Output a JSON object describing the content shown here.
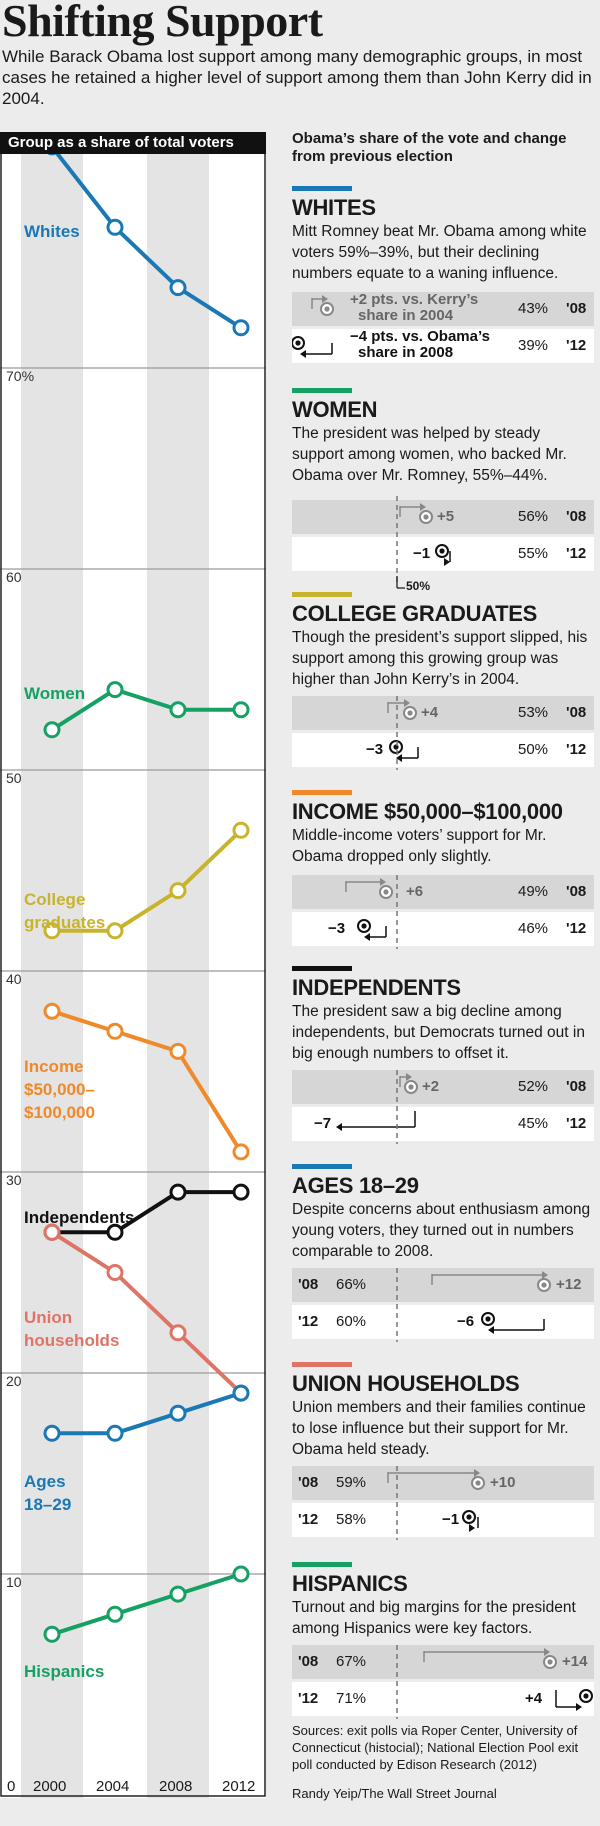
{
  "header": {
    "title": "Shifting Support",
    "subtitle": "While Barack Obama lost support among many demographic groups, in most cases he retained a higher level of support among them than John Kerry did in 2004."
  },
  "left_panel": {
    "header": "Group as a share of total voters",
    "line_labels": {
      "whites": "Whites",
      "women": "Women",
      "college_1": "College",
      "college_2": "graduates",
      "income_1": "Income",
      "income_2": "$50,000–",
      "income_3": "$100,000",
      "independents": "Independents",
      "union_1": "Union",
      "union_2": "households",
      "ages_1": "Ages",
      "ages_2": "18–29",
      "hispanics": "Hispanics"
    },
    "yticks": {
      "t70": "70%",
      "t60": "60",
      "t50": "50",
      "t40": "40",
      "t30": "30",
      "t20": "20",
      "t10": "10",
      "t0": "0"
    },
    "xticks": {
      "x2000": "2000",
      "x2004": "2004",
      "x2008": "2008",
      "x2012": "2012"
    }
  },
  "colors": {
    "whites": "#1a78b4",
    "women": "#15a163",
    "college": "#c8b42c",
    "income": "#f0892a",
    "independents": "#111111",
    "union": "#de7466",
    "ages": "#1a78b4",
    "hispanics": "#15a163",
    "gray_marker": "#888888"
  },
  "chart_data": [
    {
      "type": "line",
      "title": "Group as a share of total voters",
      "x": [
        2000,
        2004,
        2008,
        2012
      ],
      "ylim": [
        0,
        80
      ],
      "series": [
        {
          "name": "Whites",
          "values": [
            81,
            77,
            74,
            72
          ]
        },
        {
          "name": "Women",
          "values": [
            52,
            54,
            53,
            53
          ]
        },
        {
          "name": "College graduates",
          "values": [
            42,
            42,
            44,
            47
          ]
        },
        {
          "name": "Income $50,000–$100,000",
          "values": [
            38,
            37,
            36,
            31
          ]
        },
        {
          "name": "Independents",
          "values": [
            27,
            27,
            29,
            29
          ]
        },
        {
          "name": "Union households",
          "values": [
            27,
            25,
            22,
            19
          ]
        },
        {
          "name": "Ages 18–29",
          "values": [
            17,
            17,
            18,
            19
          ]
        },
        {
          "name": "Hispanics",
          "values": [
            7,
            8,
            9,
            10
          ]
        }
      ]
    },
    {
      "type": "bar",
      "title": "Obama’s share of the vote and change from previous election",
      "categories": [
        "Whites",
        "Women",
        "College graduates",
        "Income $50,000–$100,000",
        "Independents",
        "Ages 18–29",
        "Union households",
        "Hispanics"
      ],
      "series": [
        {
          "name": "'08",
          "values": [
            43,
            56,
            53,
            49,
            52,
            66,
            59,
            67
          ]
        },
        {
          "name": "'12",
          "values": [
            39,
            55,
            50,
            46,
            45,
            60,
            58,
            71
          ]
        },
        {
          "name": "'08 change",
          "values": [
            2,
            5,
            4,
            6,
            2,
            12,
            10,
            14
          ]
        },
        {
          "name": "'12 change",
          "values": [
            -4,
            -1,
            -3,
            -3,
            -7,
            -6,
            -1,
            4
          ]
        }
      ]
    }
  ],
  "right_header": "Obama’s share of the vote and change from previous election",
  "reference_label": "50%",
  "sections": {
    "whites": {
      "title": "WHITES",
      "desc": "Mitt Romney beat Mr. Obama among white voters 59%–39%, but their declining numbers equate to a waning influence.",
      "r08_change_1": "+2 pts. vs. Kerry’s",
      "r08_change_2": "share in 2004",
      "r08_pct": "43%",
      "r08_year": "'08",
      "r12_change_1": "−4 pts. vs. Obama’s",
      "r12_change_2": "share in 2008",
      "r12_pct": "39%",
      "r12_year": "'12"
    },
    "women": {
      "title": "WOMEN",
      "desc": "The president was helped by steady support among women, who backed Mr. Obama over Mr. Romney, 55%–44%.",
      "r08_change": "+5",
      "r08_pct": "56%",
      "r08_year": "'08",
      "r12_change": "−1",
      "r12_pct": "55%",
      "r12_year": "'12"
    },
    "college": {
      "title": "COLLEGE GRADUATES",
      "desc": "Though the president’s support slipped, his support among this growing group was higher than John Kerry’s in 2004.",
      "r08_change": "+4",
      "r08_pct": "53%",
      "r08_year": "'08",
      "r12_change": "−3",
      "r12_pct": "50%",
      "r12_year": "'12"
    },
    "income": {
      "title": "INCOME $50,000–$100,000",
      "desc": "Middle-income voters’ support for Mr. Obama dropped only slightly.",
      "r08_change": "+6",
      "r08_pct": "49%",
      "r08_year": "'08",
      "r12_change": "−3",
      "r12_pct": "46%",
      "r12_year": "'12"
    },
    "independents": {
      "title": "INDEPENDENTS",
      "desc": "The president saw a big decline among independents, but Democrats turned out in big enough numbers to offset it.",
      "r08_change": "+2",
      "r08_pct": "52%",
      "r08_year": "'08",
      "r12_change": "−7",
      "r12_pct": "45%",
      "r12_year": "'12"
    },
    "ages": {
      "title": "AGES 18–29",
      "desc": "Despite concerns about enthusiasm among young voters, they turned out in numbers comparable to 2008.",
      "r08_change": "+12",
      "r08_pct": "66%",
      "r08_year": "'08",
      "r12_change": "−6",
      "r12_pct": "60%",
      "r12_year": "'12"
    },
    "union": {
      "title": "UNION HOUSEHOLDS",
      "desc": "Union members and their families continue to lose influence but their support for Mr. Obama held steady.",
      "r08_change": "+10",
      "r08_pct": "59%",
      "r08_year": "'08",
      "r12_change": "−1",
      "r12_pct": "58%",
      "r12_year": "'12"
    },
    "hispanics": {
      "title": "HISPANICS",
      "desc": "Turnout and big margins for the president among Hispanics were key factors.",
      "r08_change": "+14",
      "r08_pct": "67%",
      "r08_year": "'08",
      "r12_change": "+4",
      "r12_pct": "71%",
      "r12_year": "'12"
    }
  },
  "footer": {
    "sources": "Sources: exit polls via Roper Center, University of Connecticut (histocial); National Election Pool exit poll conducted by Edison Research (2012)",
    "credit": "Randy Yeip/The Wall Street Journal"
  }
}
